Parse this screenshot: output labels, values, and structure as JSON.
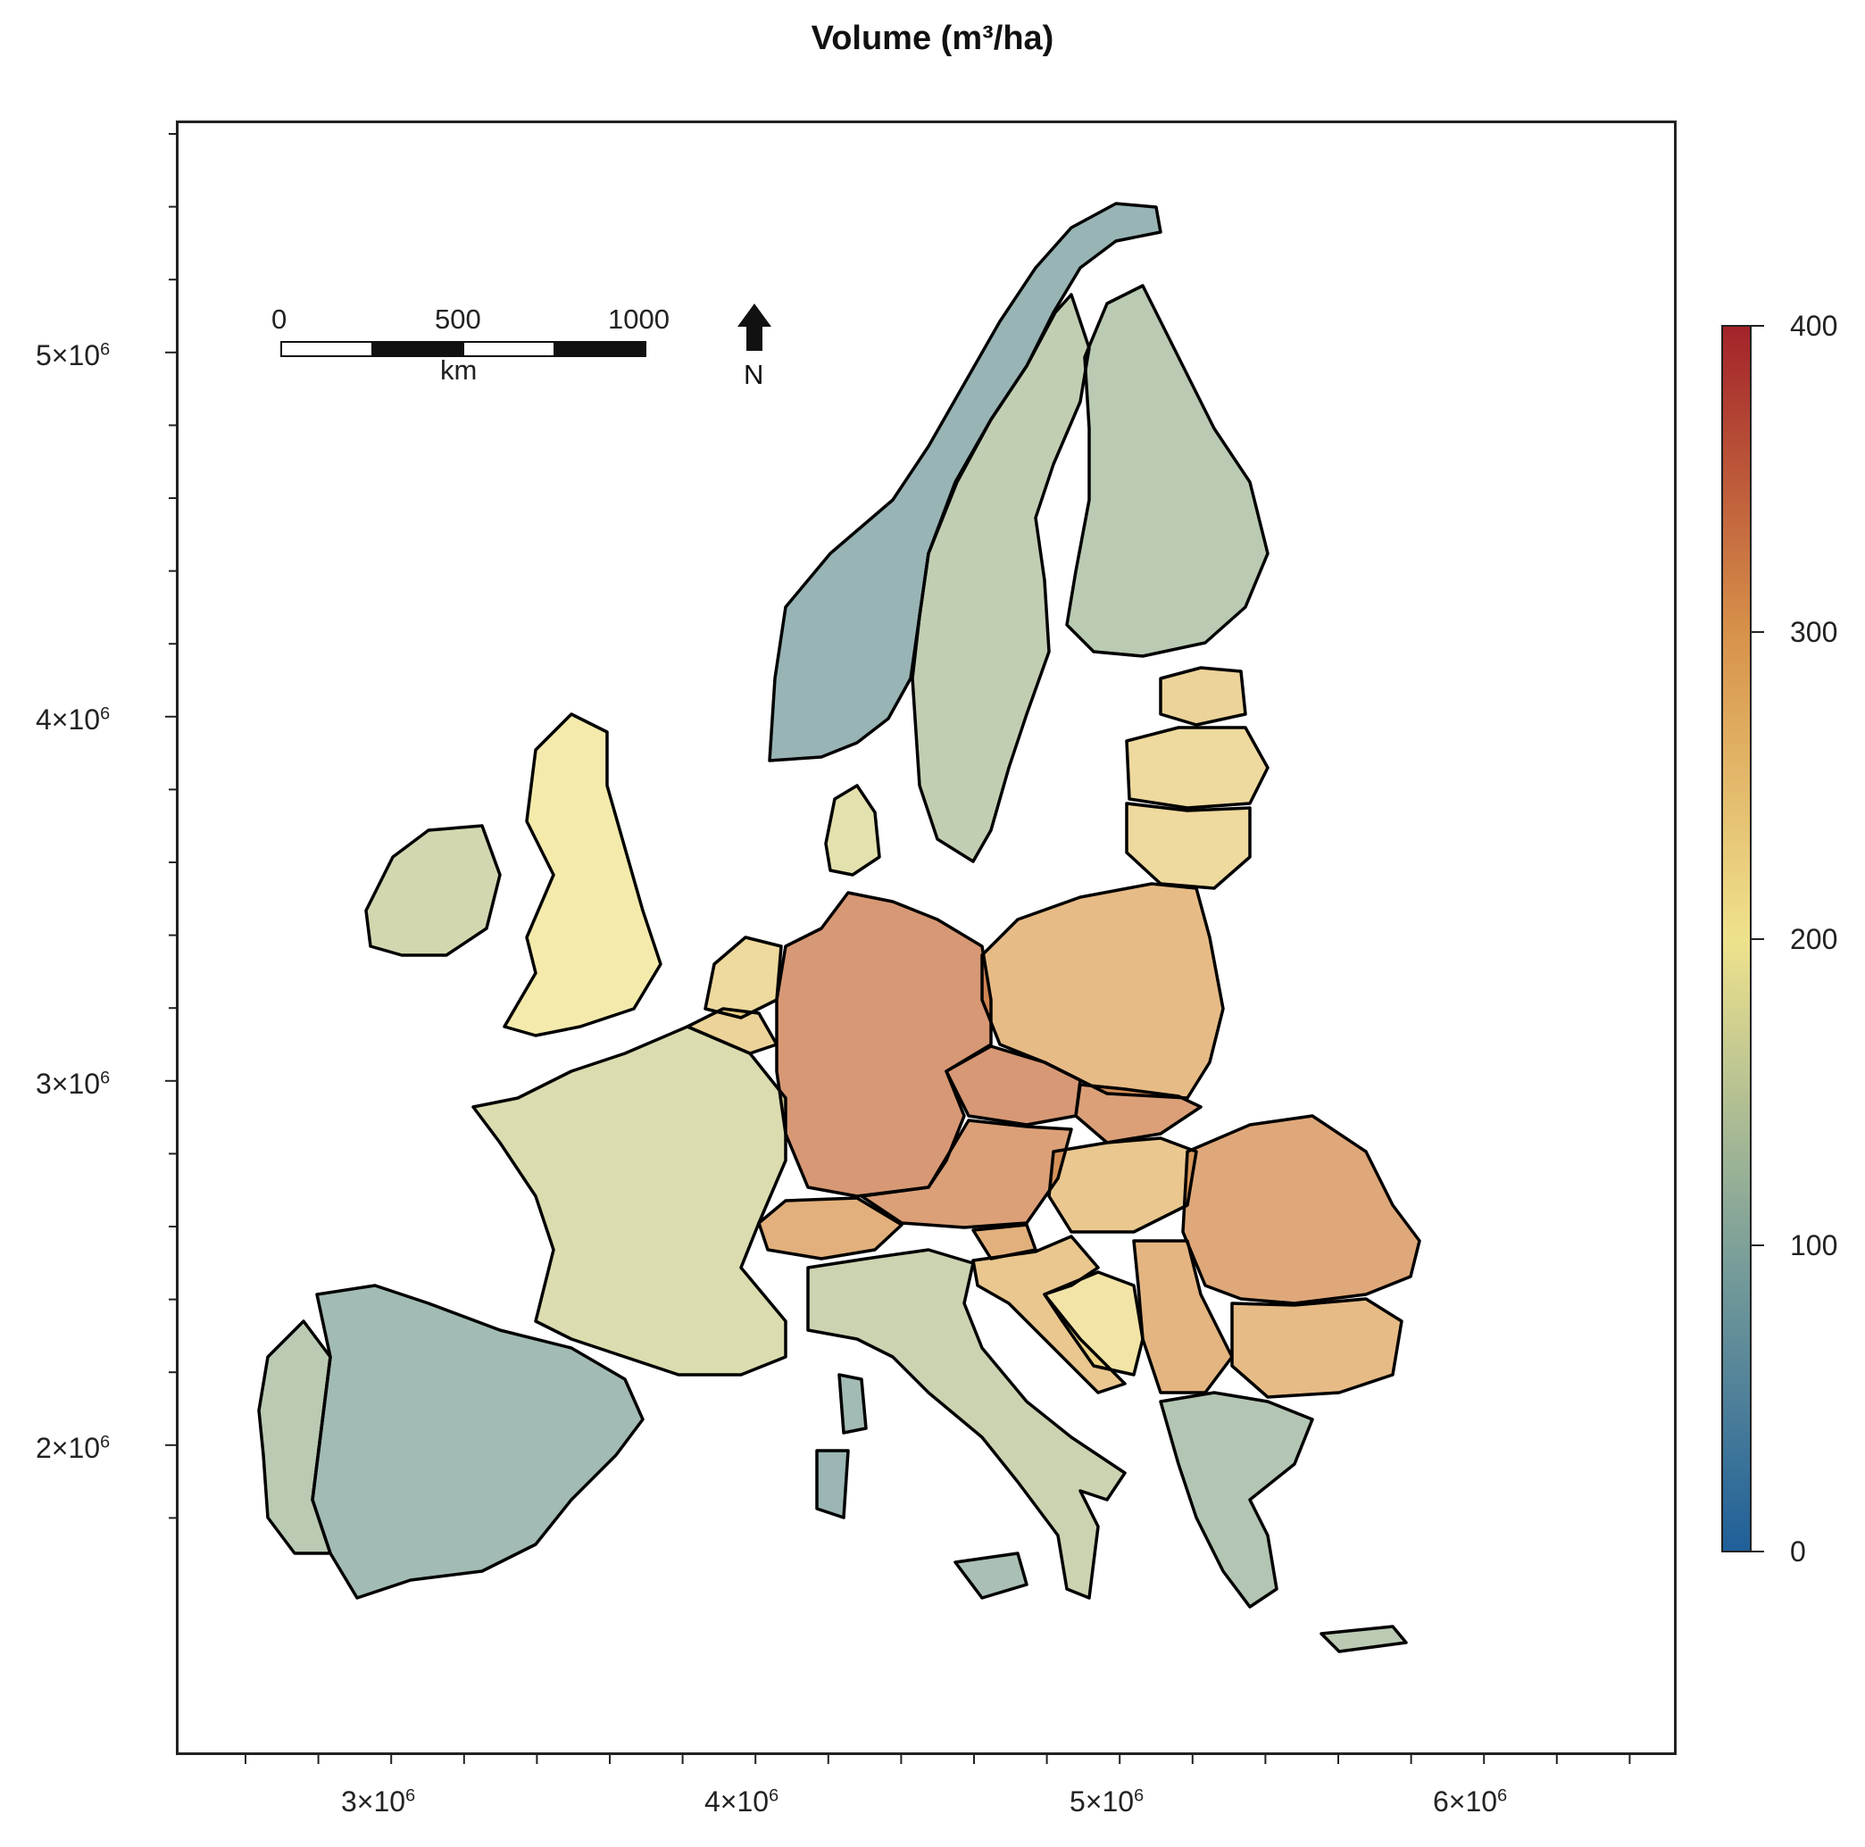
{
  "title": "Volume (m³/ha)",
  "map": {
    "x_axis": {
      "ticks": [
        {
          "base": "3",
          "exp": "6"
        },
        {
          "base": "4",
          "exp": "6"
        },
        {
          "base": "5",
          "exp": "6"
        },
        {
          "base": "6",
          "exp": "6"
        }
      ]
    },
    "y_axis": {
      "ticks": [
        {
          "base": "5",
          "exp": "6"
        },
        {
          "base": "4",
          "exp": "6"
        },
        {
          "base": "3",
          "exp": "6"
        },
        {
          "base": "2",
          "exp": "6"
        }
      ]
    },
    "scale_bar": {
      "labels": [
        "0",
        "500",
        "1000"
      ],
      "unit": "km"
    },
    "north_arrow": {
      "label": "N"
    },
    "colorbar": {
      "labels": [
        "400",
        "300",
        "200",
        "100",
        "0"
      ],
      "colors": [
        "#a3222a",
        "#d7914a",
        "#efe28c",
        "#7ea199",
        "#1f5f99"
      ],
      "min": 0,
      "max": 400
    },
    "regions": [
      "Norway",
      "Sweden",
      "Finland",
      "Estonia",
      "Latvia",
      "Lithuania",
      "Poland",
      "Germany",
      "Czech Republic",
      "Slovakia",
      "Hungary",
      "Austria",
      "Slovenia",
      "Croatia",
      "Bosnia and Herzegovina",
      "Serbia",
      "Romania",
      "Bulgaria",
      "Greece",
      "Italy",
      "Switzerland",
      "France",
      "Belgium",
      "Netherlands",
      "Luxembourg",
      "Denmark",
      "United Kingdom",
      "Ireland",
      "Spain",
      "Portugal"
    ]
  }
}
